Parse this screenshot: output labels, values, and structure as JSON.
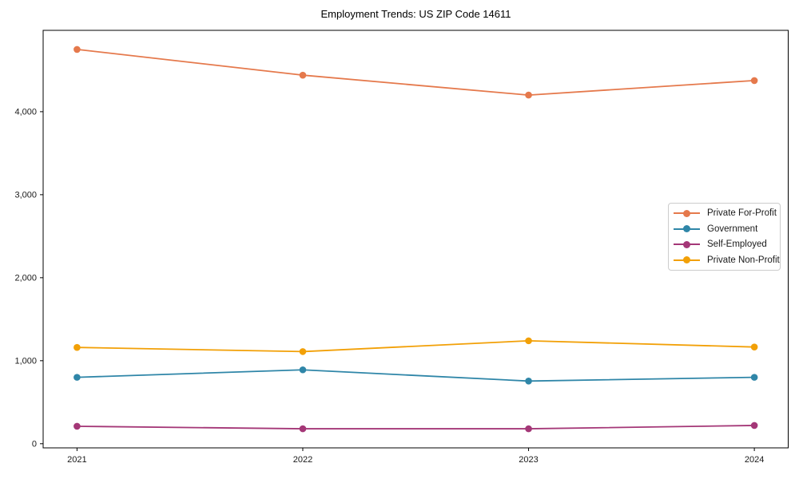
{
  "title": "Employment Trends: US ZIP Code 14611",
  "chart_data": {
    "type": "line",
    "title": "Employment Trends: US ZIP Code 14611",
    "x": [
      2021,
      2022,
      2023,
      2024
    ],
    "categories": [
      "2021",
      "2022",
      "2023",
      "2024"
    ],
    "series": [
      {
        "name": "Private For-Profit",
        "color": "#e5794c",
        "values": [
          4750,
          4440,
          4200,
          4375
        ]
      },
      {
        "name": "Government",
        "color": "#2f86a8",
        "values": [
          800,
          890,
          755,
          800
        ]
      },
      {
        "name": "Self-Employed",
        "color": "#a43777",
        "values": [
          210,
          180,
          180,
          220
        ]
      },
      {
        "name": "Private Non-Profit",
        "color": "#f2a007",
        "values": [
          1160,
          1110,
          1240,
          1165
        ]
      }
    ],
    "yticks": {
      "values": [
        0,
        1000,
        2000,
        3000,
        4000
      ],
      "labels": [
        "0",
        "1,000",
        "2,000",
        "3,000",
        "4,000"
      ]
    },
    "xlim": [
      2020.85,
      2024.15
    ],
    "ylim": [
      -50,
      4980
    ],
    "grid": false,
    "legend_position": "right-middle",
    "frame_color": "#000000"
  }
}
